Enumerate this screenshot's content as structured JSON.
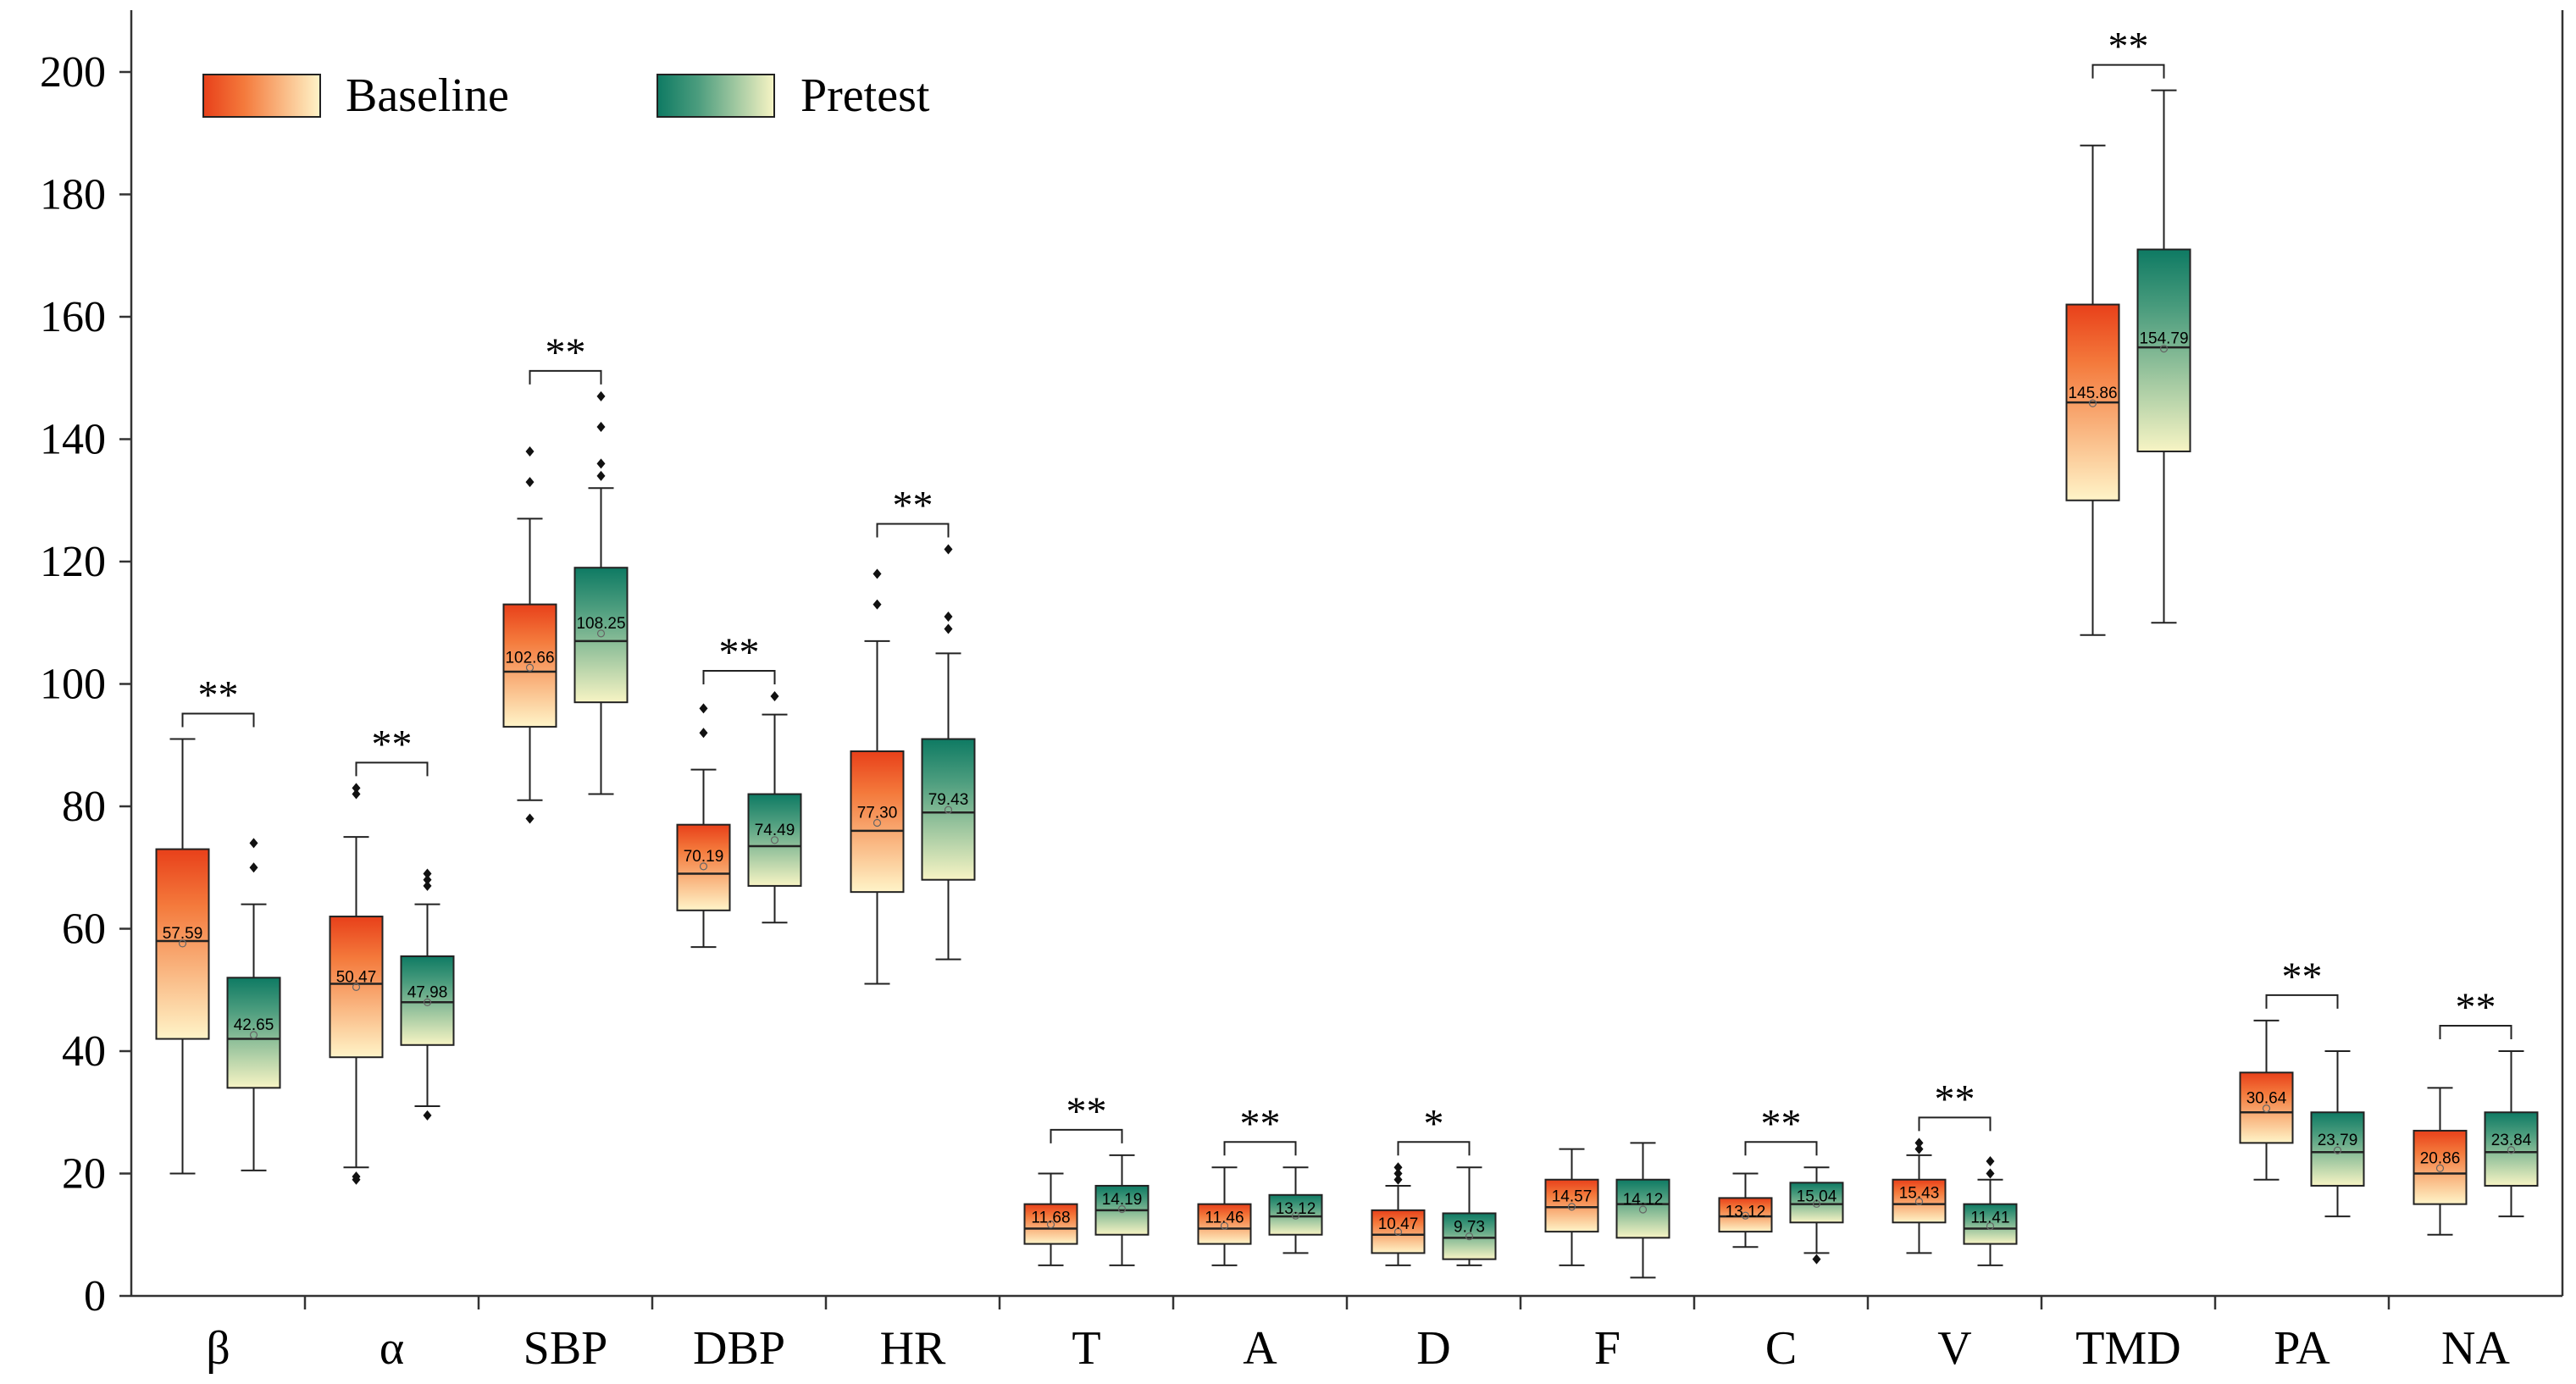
{
  "chart_data": {
    "type": "box",
    "categories": [
      "β",
      "α",
      "SBP",
      "DBP",
      "HR",
      "T",
      "A",
      "D",
      "F",
      "C",
      "V",
      "TMD",
      "PA",
      "NA"
    ],
    "y_ticks": [
      "0",
      "20",
      "40",
      "60",
      "80",
      "100",
      "120",
      "140",
      "160",
      "180",
      "200"
    ],
    "ylim": [
      0,
      208
    ],
    "legend": {
      "position": "top-left",
      "items": [
        "Baseline",
        "Pretest"
      ]
    },
    "colors": {
      "baseline_top": "#e8401a",
      "baseline_bottom": "#fff4c8",
      "pretest_top": "#0e7a63",
      "pretest_bottom": "#f7f4c4"
    },
    "series": [
      {
        "name": "Baseline",
        "boxes": [
          {
            "min": 20,
            "q1": 42,
            "median": 58,
            "q3": 73,
            "max": 91,
            "mean": 57.59,
            "mean_label": "57.59",
            "outliers": []
          },
          {
            "min": 21,
            "q1": 39,
            "median": 51,
            "q3": 62,
            "max": 75,
            "mean": 50.47,
            "mean_label": "50.47",
            "outliers": [
              19,
              19.5,
              82,
              83
            ]
          },
          {
            "min": 81,
            "q1": 93,
            "median": 102,
            "q3": 113,
            "max": 127,
            "mean": 102.66,
            "mean_label": "102.66",
            "outliers": [
              78,
              133,
              138
            ]
          },
          {
            "min": 57,
            "q1": 63,
            "median": 69,
            "q3": 77,
            "max": 86,
            "mean": 70.19,
            "mean_label": "70.19",
            "outliers": [
              92,
              96
            ]
          },
          {
            "min": 51,
            "q1": 66,
            "median": 76,
            "q3": 89,
            "max": 107,
            "mean": 77.3,
            "mean_label": "77.30",
            "outliers": [
              113,
              118
            ]
          },
          {
            "min": 5,
            "q1": 8.5,
            "median": 11,
            "q3": 15,
            "max": 20,
            "mean": 11.68,
            "mean_label": "11.68",
            "outliers": []
          },
          {
            "min": 5,
            "q1": 8.5,
            "median": 11,
            "q3": 15,
            "max": 21,
            "mean": 11.46,
            "mean_label": "11.46",
            "outliers": []
          },
          {
            "min": 5,
            "q1": 7,
            "median": 10,
            "q3": 14,
            "max": 18,
            "mean": 10.47,
            "mean_label": "10.47",
            "outliers": [
              19,
              20,
              21
            ]
          },
          {
            "min": 5,
            "q1": 10.5,
            "median": 14.5,
            "q3": 19,
            "max": 24,
            "mean": 14.57,
            "mean_label": "14.57",
            "outliers": []
          },
          {
            "min": 8,
            "q1": 10.5,
            "median": 13,
            "q3": 16,
            "max": 20,
            "mean": 13.12,
            "mean_label": "13.12",
            "outliers": []
          },
          {
            "min": 7,
            "q1": 12,
            "median": 15,
            "q3": 19,
            "max": 23,
            "mean": 15.43,
            "mean_label": "15.43",
            "outliers": [
              24,
              25
            ]
          },
          {
            "min": 108,
            "q1": 130,
            "median": 146,
            "q3": 162,
            "max": 188,
            "mean": 145.86,
            "mean_label": "145.86",
            "outliers": []
          },
          {
            "min": 19,
            "q1": 25,
            "median": 30,
            "q3": 36.5,
            "max": 45,
            "mean": 30.64,
            "mean_label": "30.64",
            "outliers": []
          },
          {
            "min": 10,
            "q1": 15,
            "median": 20,
            "q3": 27,
            "max": 34,
            "mean": 20.86,
            "mean_label": "20.86",
            "outliers": []
          }
        ]
      },
      {
        "name": "Pretest",
        "boxes": [
          {
            "min": 20.5,
            "q1": 34,
            "median": 42,
            "q3": 52,
            "max": 64,
            "mean": 42.65,
            "mean_label": "42.65",
            "outliers": [
              70,
              74
            ]
          },
          {
            "min": 31,
            "q1": 41,
            "median": 48,
            "q3": 55.5,
            "max": 64,
            "mean": 47.98,
            "mean_label": "47.98",
            "outliers": [
              29.5,
              67,
              68,
              69
            ]
          },
          {
            "min": 82,
            "q1": 97,
            "median": 107,
            "q3": 119,
            "max": 132,
            "mean": 108.25,
            "mean_label": "108.25",
            "outliers": [
              134,
              136,
              142,
              147
            ]
          },
          {
            "min": 61,
            "q1": 67,
            "median": 73.5,
            "q3": 82,
            "max": 95,
            "mean": 74.49,
            "mean_label": "74.49",
            "outliers": [
              98
            ]
          },
          {
            "min": 55,
            "q1": 68,
            "median": 79,
            "q3": 91,
            "max": 105,
            "mean": 79.43,
            "mean_label": "79.43",
            "outliers": [
              109,
              111,
              122
            ]
          },
          {
            "min": 5,
            "q1": 10,
            "median": 14,
            "q3": 18,
            "max": 23,
            "mean": 14.19,
            "mean_label": "14.19",
            "outliers": []
          },
          {
            "min": 7,
            "q1": 10,
            "median": 13,
            "q3": 16.5,
            "max": 21,
            "mean": 13.12,
            "mean_label": "13.12",
            "outliers": []
          },
          {
            "min": 5,
            "q1": 6,
            "median": 9.5,
            "q3": 13.5,
            "max": 21,
            "mean": 9.73,
            "mean_label": "9.73",
            "outliers": []
          },
          {
            "min": 3,
            "q1": 9.5,
            "median": 15,
            "q3": 19,
            "max": 25,
            "mean": 14.12,
            "mean_label": "14.12",
            "outliers": []
          },
          {
            "min": 7,
            "q1": 12,
            "median": 15,
            "q3": 18.5,
            "max": 21,
            "mean": 15.04,
            "mean_label": "15.04",
            "outliers": [
              6
            ]
          },
          {
            "min": 5,
            "q1": 8.5,
            "median": 11,
            "q3": 15,
            "max": 19,
            "mean": 11.41,
            "mean_label": "11.41",
            "outliers": [
              20,
              22
            ]
          },
          {
            "min": 110,
            "q1": 138,
            "median": 155,
            "q3": 171,
            "max": 197,
            "mean": 154.79,
            "mean_label": "154.79",
            "outliers": []
          },
          {
            "min": 13,
            "q1": 18,
            "median": 23.5,
            "q3": 30,
            "max": 40,
            "mean": 23.79,
            "mean_label": "23.79",
            "outliers": []
          },
          {
            "min": 13,
            "q1": 18,
            "median": 23.5,
            "q3": 30,
            "max": 40,
            "mean": 23.84,
            "mean_label": "23.84",
            "outliers": []
          }
        ]
      }
    ],
    "significance": [
      "**",
      "**",
      "**",
      "**",
      "**",
      "**",
      "**",
      "*",
      "",
      "**",
      "**",
      "**",
      "**",
      "**"
    ]
  }
}
